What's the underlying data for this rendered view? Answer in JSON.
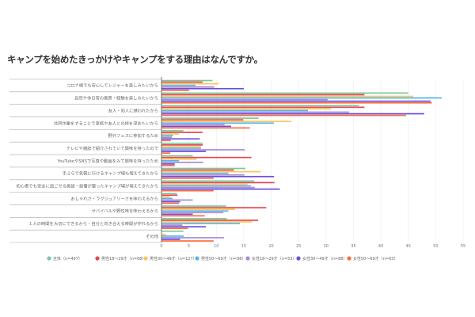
{
  "chart_data": {
    "type": "bar",
    "orientation": "horizontal",
    "title": "キャンプを始めたきっかけやキャンプをする理由はなんですか。",
    "xlabel": "",
    "ylabel": "",
    "xlim": [
      0,
      55
    ],
    "xticks": [
      "0",
      "5",
      "10",
      "15",
      "20",
      "25",
      "30",
      "35",
      "40",
      "45",
      "50",
      "55"
    ],
    "grid": true,
    "legend_position": "bottom",
    "categories": [
      "コロナ禍でも安心してレジャーを楽しみたいから",
      "自然や非日常の風景・経験を楽しみたいから",
      "友人・知人に誘われたから",
      "共同作業をすることで家族や友人との絆を深めたいから",
      "野外フェスに参加するため",
      "テレビや雑誌で紹介されていて興味を持ったので",
      "YouTubeやSNSで写真や動画をみて興味を持ったため",
      "手ぶらで気軽に行けるキャンプ場も増えてきたから",
      "初心者でも安全に過ごせる施設・設備が整ったキャンプ場が増えてきたから",
      "おしゃれさ・ラグジュアリーさを味わえるから",
      "サバイバルや野性味を味わえるから",
      "１人の時間を大切にできるから・自分と向き合える時間が作れるから",
      "その他"
    ],
    "series": [
      {
        "name": "全体（n=497）",
        "color": "#7cc79c",
        "values": [
          9.3,
          45,
          36,
          17.7,
          4,
          7.5,
          5.7,
          15.3,
          16.9,
          2.8,
          11.8,
          11.9,
          4
        ]
      },
      {
        "name": "男性18〜29才（n=68）",
        "color": "#e8474f",
        "values": [
          7.5,
          37,
          37,
          14.9,
          7.5,
          7.5,
          16.4,
          13.2,
          20.6,
          2.9,
          19.1,
          17.6,
          0
        ]
      },
      {
        "name": "男性30〜49才（n=127）",
        "color": "#f6c85f",
        "values": [
          10.4,
          45.9,
          30.9,
          23.7,
          3.2,
          7.2,
          6.4,
          18.1,
          15.7,
          1.5,
          13.4,
          16.5,
          0.8
        ]
      },
      {
        "name": "男性50〜69才（n=98）",
        "color": "#5ab4e5",
        "values": [
          6.2,
          51.1,
          26.7,
          20.5,
          2.1,
          7.2,
          3.2,
          12.2,
          16.3,
          2,
          12.2,
          14.3,
          4.1
        ]
      },
      {
        "name": "女性18〜29才（n=53）",
        "color": "#a98bd3",
        "values": [
          9.6,
          30.3,
          34.2,
          11.5,
          1.9,
          15.2,
          7.6,
          15.1,
          17,
          5.7,
          11.3,
          3.8,
          11.4
        ]
      },
      {
        "name": "女性30〜49才（n=88）",
        "color": "#6b4fe0",
        "values": [
          15,
          49.1,
          47.9,
          12.7,
          7,
          8.1,
          2.4,
          20.5,
          21.6,
          3.4,
          5.7,
          8.1,
          3.4
        ]
      },
      {
        "name": "女性50〜69才（n=63）",
        "color": "#ff6a3d",
        "values": [
          5,
          49.3,
          44.6,
          16.1,
          1.7,
          1.6,
          2.4,
          9.5,
          9.5,
          3.2,
          7.9,
          4.8,
          9.5
        ]
      }
    ]
  }
}
